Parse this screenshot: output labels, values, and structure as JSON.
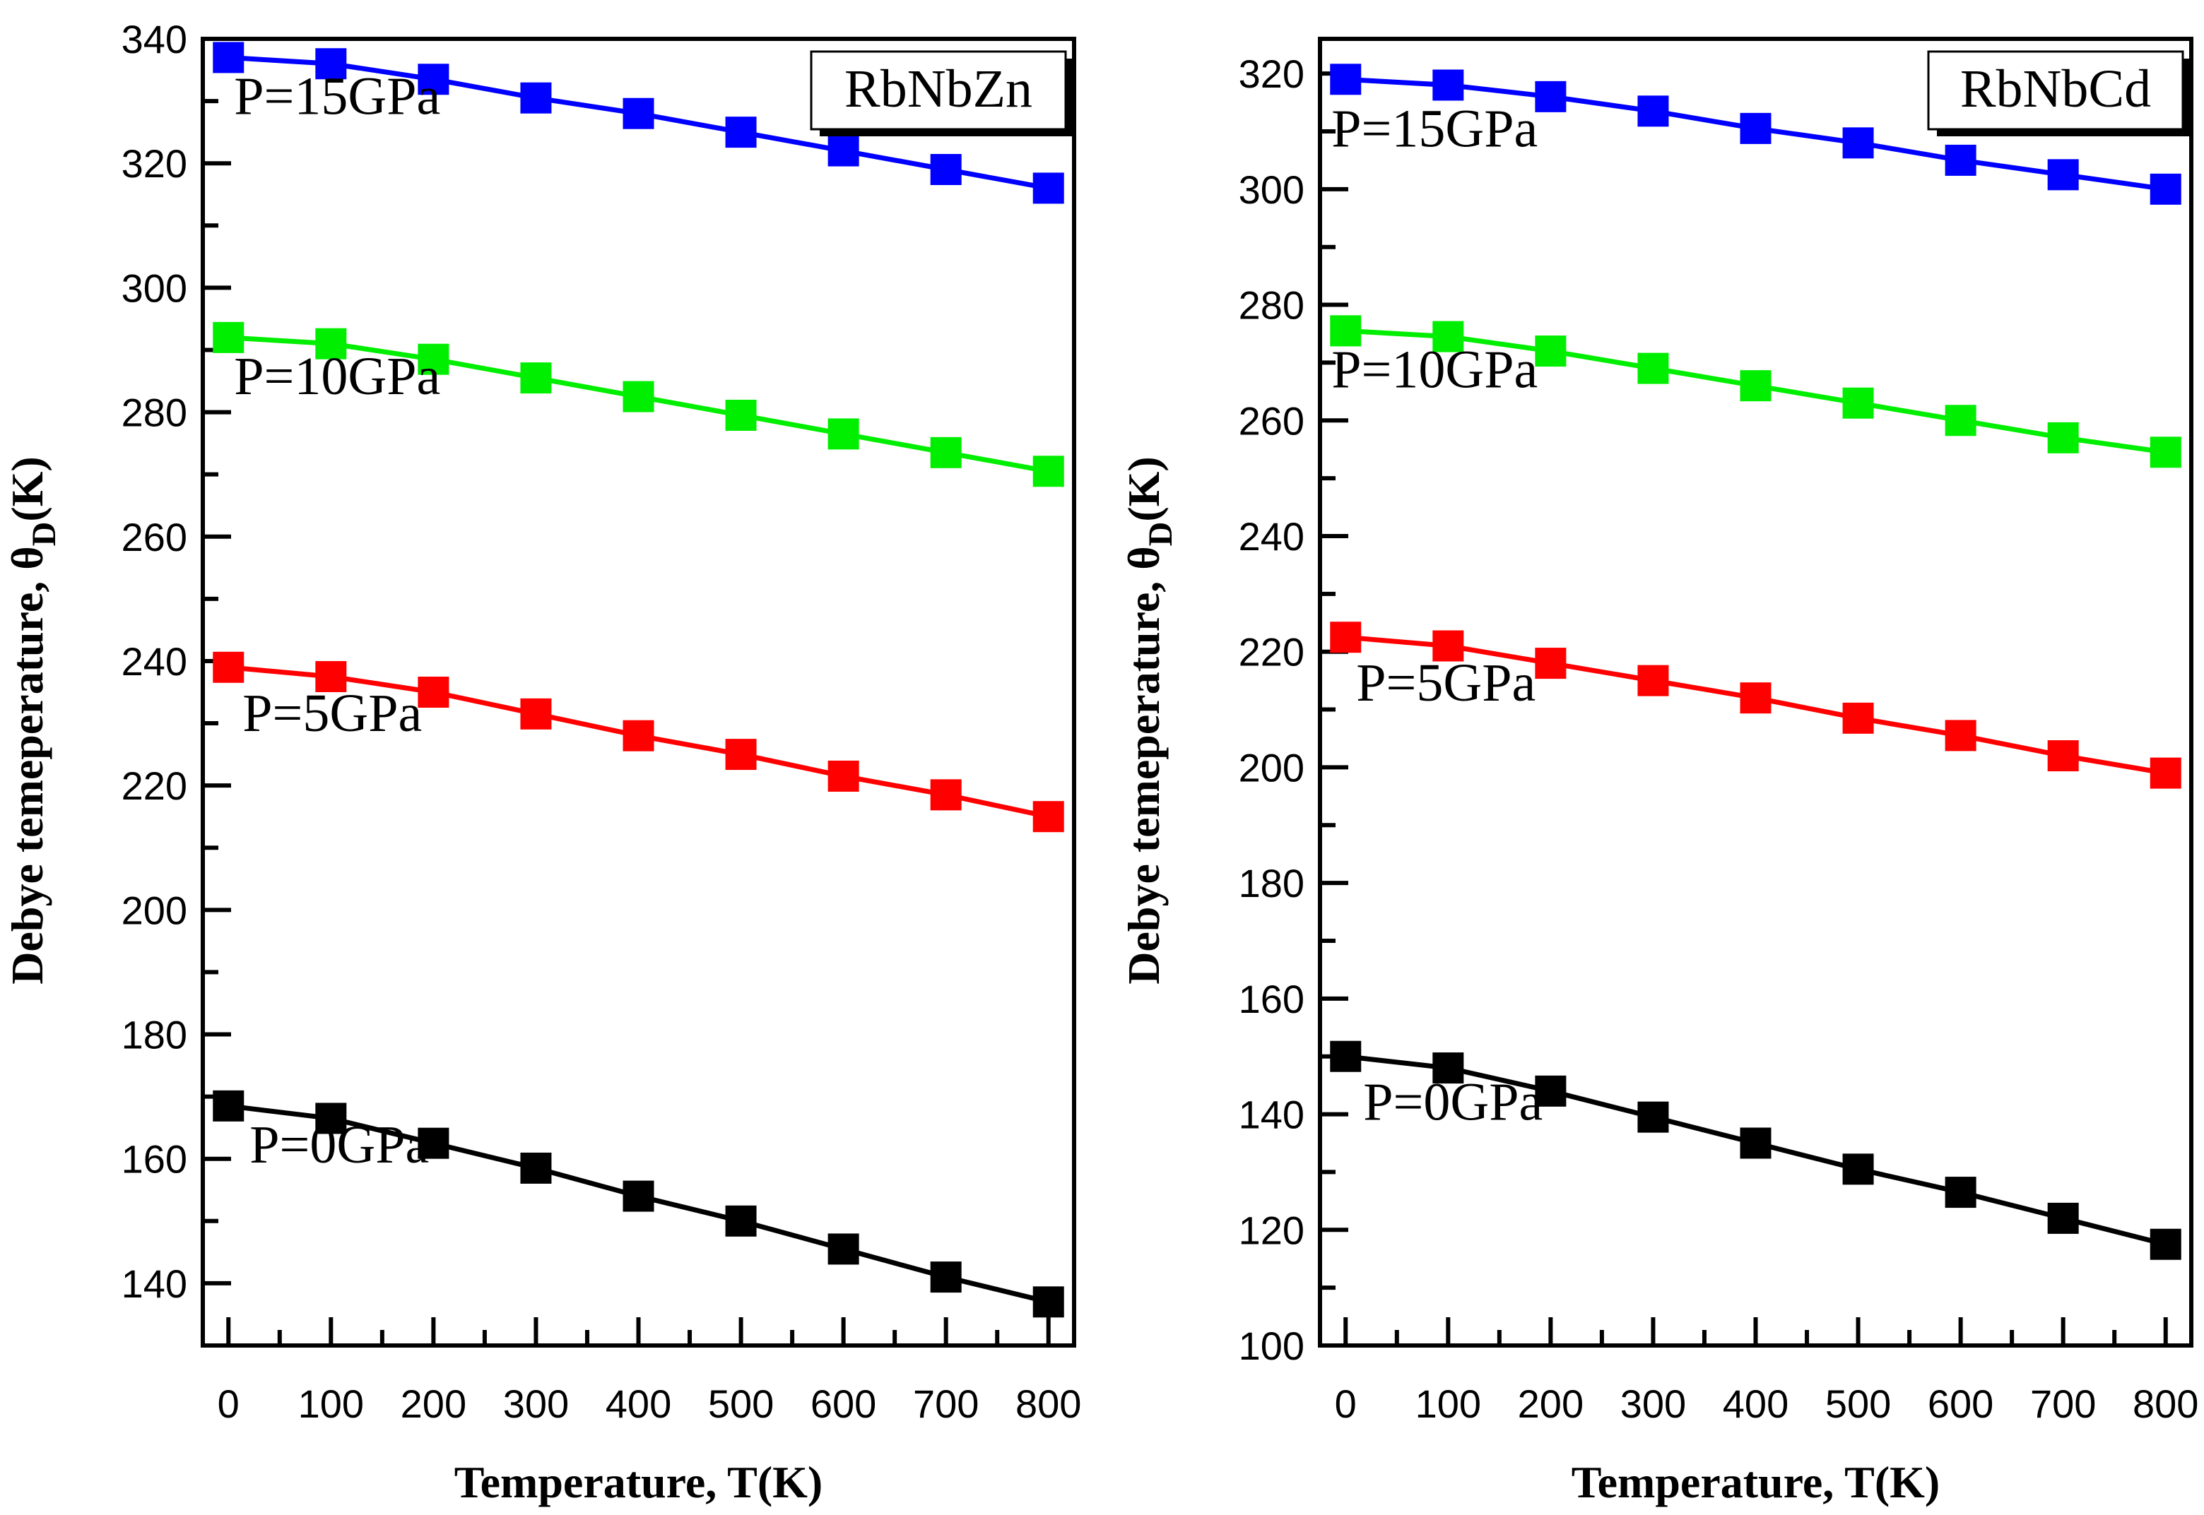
{
  "chart_data": [
    {
      "type": "line",
      "title": "RbNbZn",
      "xlabel": "Temperature, T(K)",
      "ylabel_main": "Debye temeperature, θ",
      "ylabel_sub": "D",
      "ylabel_suffix": "(K)",
      "xlim": [
        -25,
        825
      ],
      "ylim": [
        130,
        340
      ],
      "xticks": [
        0,
        100,
        200,
        300,
        400,
        500,
        600,
        700,
        800
      ],
      "yticks": [
        140,
        160,
        180,
        200,
        220,
        240,
        260,
        280,
        300,
        320,
        340
      ],
      "x": [
        0,
        100,
        200,
        300,
        400,
        500,
        600,
        700,
        800
      ],
      "series": [
        {
          "name": "P=15GPa",
          "color": "#0000ff",
          "values": [
            337,
            336,
            333.5,
            330.5,
            328,
            325,
            322,
            319,
            316
          ]
        },
        {
          "name": "P=10GPa",
          "color": "#00ee00",
          "values": [
            292,
            291,
            288.5,
            285.5,
            282.5,
            279.5,
            276.5,
            273.5,
            270.5
          ]
        },
        {
          "name": "P=5GPa",
          "color": "#ff0000",
          "values": [
            239,
            237.5,
            235,
            231.5,
            228,
            225,
            221.5,
            218.5,
            215
          ]
        },
        {
          "name": "P=0GPa",
          "color": "#000000",
          "values": [
            168.5,
            166.5,
            162.5,
            158.5,
            154,
            150,
            145.5,
            141,
            137
          ]
        }
      ]
    },
    {
      "type": "line",
      "title": "RbNbCd",
      "xlabel": "Temperature, T(K)",
      "ylabel_main": "Debye temeperature, θ",
      "ylabel_sub": "D",
      "ylabel_suffix": "(K)",
      "xlim": [
        -25,
        825
      ],
      "ylim": [
        100,
        326
      ],
      "xticks": [
        0,
        100,
        200,
        300,
        400,
        500,
        600,
        700,
        800
      ],
      "yticks": [
        100,
        120,
        140,
        160,
        180,
        200,
        220,
        240,
        260,
        280,
        300,
        320
      ],
      "x": [
        0,
        100,
        200,
        300,
        400,
        500,
        600,
        700,
        800
      ],
      "series": [
        {
          "name": "P=15GPa",
          "color": "#0000ff",
          "values": [
            319,
            318,
            316,
            313.5,
            310.5,
            308,
            305,
            302.5,
            300
          ]
        },
        {
          "name": "P=10GPa",
          "color": "#00ee00",
          "values": [
            275.5,
            274.5,
            272,
            269,
            266,
            263,
            260,
            257,
            254.5
          ]
        },
        {
          "name": "P=5GPa",
          "color": "#ff0000",
          "values": [
            222.5,
            221,
            218,
            215,
            212,
            208.5,
            205.5,
            202,
            199
          ]
        },
        {
          "name": "P=0GPa",
          "color": "#000000",
          "values": [
            150,
            148,
            144,
            139.5,
            135,
            130.5,
            126.5,
            122,
            117.5
          ]
        }
      ]
    }
  ]
}
